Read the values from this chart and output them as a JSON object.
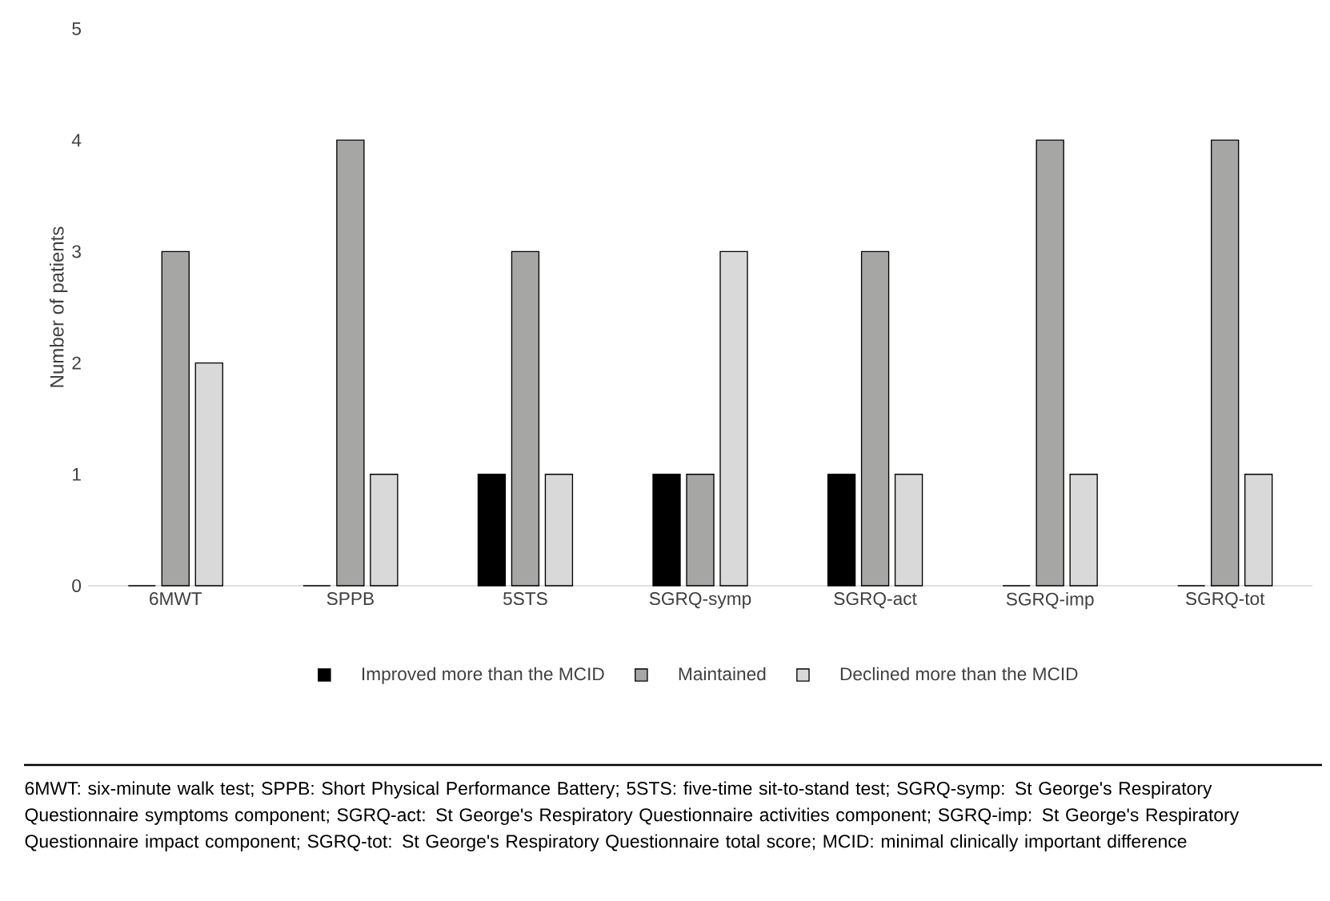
{
  "chart_data": {
    "type": "bar",
    "ylabel": "Number of patients",
    "categories": [
      "6MWT",
      "SPPB",
      "5STS",
      "SGRQ-symp",
      "SGRQ-act",
      "SGRQ-imp",
      "SGRQ-tot"
    ],
    "series": [
      {
        "name": "Improved more than the MCID",
        "color": "#000000",
        "values": [
          0,
          0,
          1,
          1,
          1,
          0,
          0
        ]
      },
      {
        "name": "Maintained",
        "color": "#a6a6a4",
        "values": [
          3,
          4,
          3,
          1,
          3,
          4,
          4
        ]
      },
      {
        "name": "Declined more than the MCID",
        "color": "#d9d9d9",
        "values": [
          2,
          1,
          1,
          3,
          1,
          1,
          1
        ]
      }
    ],
    "ylim": [
      0,
      5
    ],
    "yticks": [
      0,
      1,
      2,
      3,
      4,
      5
    ],
    "grid": false,
    "legend": "bottom",
    "annotations": [
      "6MWT: six-minute walk test; SPPB: Short Physical Performance Battery; 5STS: five-time sit-to-stand test; SGRQ-symp: St George's Respiratory Questionnaire symptoms component; SGRQ-act: St George's Respiratory Questionnaire activities component; SGRQ-imp: St George's Respiratory Questionnaire impact component; SGRQ-tot: St George's Respiratory Questionnaire total score; MCID: minimal clinically important difference"
    ]
  }
}
